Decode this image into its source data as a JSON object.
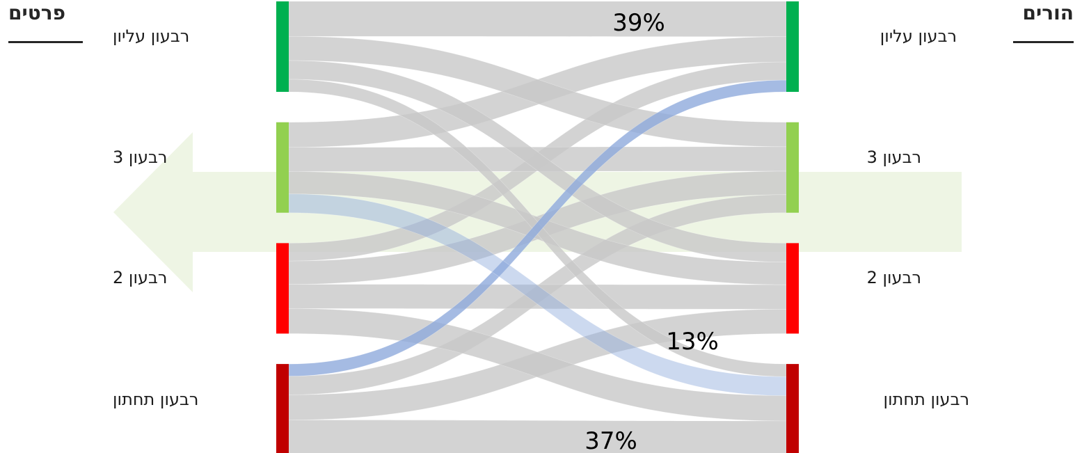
{
  "headers": {
    "right": "הורים",
    "left": "פרטים"
  },
  "groups": [
    {
      "label": "רבעון עליון",
      "color": "#00b050"
    },
    {
      "label": "רבעון 3",
      "color": "#92d050"
    },
    {
      "label": "רבעון 2",
      "color": "#ff0000"
    },
    {
      "label": "רבעון תחתון",
      "color": "#c00000"
    }
  ],
  "chart_data": {
    "type": "sankey",
    "source_side": "הורים (right)",
    "target_side": "פרטים (left)",
    "categories": [
      "רבעון עליון",
      "רבעון 3",
      "רבעון 2",
      "רבעון תחתון"
    ],
    "flows_percent_of_source": [
      {
        "from": "רבעון עליון",
        "to": "רבעון עליון",
        "value": 39
      },
      {
        "from": "רבעון עליון",
        "to": "רבעון 3",
        "value": 28
      },
      {
        "from": "רבעון עליון",
        "to": "רבעון 2",
        "value": 20
      },
      {
        "from": "רבעון עליון",
        "to": "רבעון תחתון",
        "value": 13
      },
      {
        "from": "רבעון 3",
        "to": "רבעון עליון",
        "value": 27
      },
      {
        "from": "רבעון 3",
        "to": "רבעון 3",
        "value": 27
      },
      {
        "from": "רבעון 3",
        "to": "רבעון 2",
        "value": 26
      },
      {
        "from": "רבעון 3",
        "to": "רבעון תחתון",
        "value": 20
      },
      {
        "from": "רבעון 2",
        "to": "רבעון עליון",
        "value": 21
      },
      {
        "from": "רבעון 2",
        "to": "רבעון 3",
        "value": 25
      },
      {
        "from": "רבעון 2",
        "to": "רבעון 2",
        "value": 27
      },
      {
        "from": "רבעון 2",
        "to": "רבעון תחתון",
        "value": 27
      },
      {
        "from": "רבעון תחתון",
        "to": "רבעון עליון",
        "value": 14
      },
      {
        "from": "רבעון תחתון",
        "to": "רבעון 3",
        "value": 21
      },
      {
        "from": "רבעון תחתון",
        "to": "רבעון 2",
        "value": 28
      },
      {
        "from": "רבעון תחתון",
        "to": "רבעון תחתון",
        "value": 37
      }
    ],
    "annotations": [
      "39%",
      "13%",
      "37%"
    ],
    "highlighted_flows": [
      {
        "from": "רבעון עליון",
        "to": "רבעון תחתון"
      },
      {
        "from": "רבעון תחתון",
        "to": "רבעון 3"
      }
    ],
    "arrow_direction": "right-to-left"
  },
  "colors": {
    "flow": "#c8c8c8",
    "highlight": "#8faadc",
    "arrow": "#eef5e4"
  }
}
